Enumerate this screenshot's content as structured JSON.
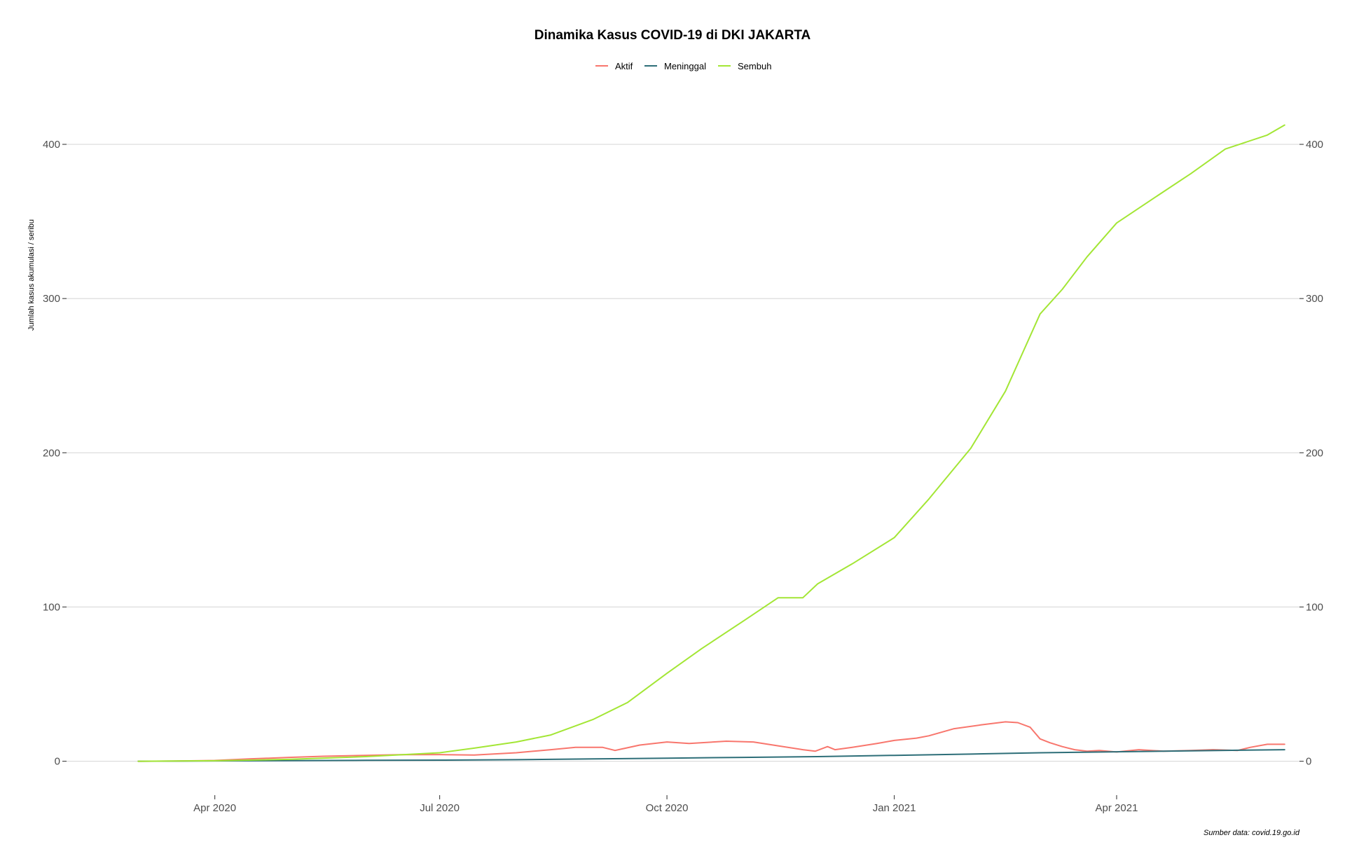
{
  "chart_data": {
    "type": "line",
    "title": "Dinamika Kasus COVID-19 di DKI JAKARTA",
    "ylabel": "Jumlah kasus akumulasi / seribu",
    "xlabel": "",
    "caption": "Sumber data: covid.19.go.id",
    "legend_position": "top",
    "grid": "horizontal major",
    "secondary_y_axis": true,
    "xlim": [
      "2020-02-01",
      "2021-06-14"
    ],
    "ylim": [
      -22,
      440
    ],
    "x_ticks": [
      {
        "date": "2020-04-01",
        "label": "Apr 2020"
      },
      {
        "date": "2020-07-01",
        "label": "Jul 2020"
      },
      {
        "date": "2020-10-01",
        "label": "Oct 2020"
      },
      {
        "date": "2021-01-01",
        "label": "Jan 2021"
      },
      {
        "date": "2021-04-01",
        "label": "Apr 2021"
      }
    ],
    "y_ticks": [
      {
        "value": 0,
        "label": "0"
      },
      {
        "value": 100,
        "label": "100"
      },
      {
        "value": 200,
        "label": "200"
      },
      {
        "value": 300,
        "label": "300"
      },
      {
        "value": 400,
        "label": "400"
      }
    ],
    "series": [
      {
        "name": "Aktif",
        "color": "#F8766D",
        "points": [
          [
            "2020-03-01",
            0
          ],
          [
            "2020-03-15",
            0.1
          ],
          [
            "2020-04-01",
            0.5
          ],
          [
            "2020-04-15",
            1.5
          ],
          [
            "2020-05-01",
            2.5
          ],
          [
            "2020-05-15",
            3.2
          ],
          [
            "2020-06-01",
            3.8
          ],
          [
            "2020-06-15",
            4.2
          ],
          [
            "2020-07-01",
            4.3
          ],
          [
            "2020-07-15",
            4.0
          ],
          [
            "2020-08-01",
            5.5
          ],
          [
            "2020-08-15",
            7.5
          ],
          [
            "2020-08-25",
            9.0
          ],
          [
            "2020-09-05",
            9.0
          ],
          [
            "2020-09-10",
            7.0
          ],
          [
            "2020-09-20",
            10.5
          ],
          [
            "2020-10-01",
            12.5
          ],
          [
            "2020-10-10",
            11.5
          ],
          [
            "2020-10-25",
            13.0
          ],
          [
            "2020-11-05",
            12.5
          ],
          [
            "2020-11-15",
            10.0
          ],
          [
            "2020-11-25",
            7.5
          ],
          [
            "2020-11-30",
            6.5
          ],
          [
            "2020-12-05",
            9.5
          ],
          [
            "2020-12-08",
            7.5
          ],
          [
            "2020-12-15",
            9.0
          ],
          [
            "2020-12-25",
            11.5
          ],
          [
            "2021-01-01",
            13.5
          ],
          [
            "2021-01-10",
            15.0
          ],
          [
            "2021-01-15",
            16.5
          ],
          [
            "2021-01-25",
            21.0
          ],
          [
            "2021-02-05",
            23.5
          ],
          [
            "2021-02-15",
            25.5
          ],
          [
            "2021-02-20",
            25.0
          ],
          [
            "2021-02-25",
            22.0
          ],
          [
            "2021-03-01",
            14.5
          ],
          [
            "2021-03-05",
            12.0
          ],
          [
            "2021-03-10",
            9.5
          ],
          [
            "2021-03-15",
            7.5
          ],
          [
            "2021-03-20",
            6.5
          ],
          [
            "2021-03-25",
            7.0
          ],
          [
            "2021-04-01",
            6.0
          ],
          [
            "2021-04-10",
            7.5
          ],
          [
            "2021-04-20",
            6.5
          ],
          [
            "2021-05-01",
            7.0
          ],
          [
            "2021-05-10",
            7.5
          ],
          [
            "2021-05-20",
            7.0
          ],
          [
            "2021-05-25",
            9.0
          ],
          [
            "2021-06-01",
            11.0
          ],
          [
            "2021-06-08",
            11.0
          ]
        ]
      },
      {
        "name": "Meninggal",
        "color": "#2D6E78",
        "points": [
          [
            "2020-03-01",
            0
          ],
          [
            "2020-04-01",
            0.2
          ],
          [
            "2020-05-01",
            0.4
          ],
          [
            "2020-06-01",
            0.6
          ],
          [
            "2020-07-01",
            0.7
          ],
          [
            "2020-08-01",
            1.0
          ],
          [
            "2020-09-01",
            1.5
          ],
          [
            "2020-10-01",
            2.0
          ],
          [
            "2020-11-01",
            2.5
          ],
          [
            "2020-12-01",
            3.0
          ],
          [
            "2021-01-01",
            3.8
          ],
          [
            "2021-02-01",
            4.6
          ],
          [
            "2021-03-01",
            5.5
          ],
          [
            "2021-04-01",
            6.1
          ],
          [
            "2021-05-01",
            6.7
          ],
          [
            "2021-06-08",
            7.5
          ]
        ]
      },
      {
        "name": "Sembuh",
        "color": "#A3E635",
        "points": [
          [
            "2020-03-01",
            0
          ],
          [
            "2020-04-01",
            0.3
          ],
          [
            "2020-05-01",
            1.2
          ],
          [
            "2020-06-01",
            3.0
          ],
          [
            "2020-07-01",
            5.5
          ],
          [
            "2020-07-15",
            8.5
          ],
          [
            "2020-08-01",
            12.5
          ],
          [
            "2020-08-15",
            17.0
          ],
          [
            "2020-09-01",
            27.0
          ],
          [
            "2020-09-15",
            38.0
          ],
          [
            "2020-10-01",
            57.0
          ],
          [
            "2020-10-15",
            73.0
          ],
          [
            "2020-11-01",
            91.0
          ],
          [
            "2020-11-15",
            106.0
          ],
          [
            "2020-11-25",
            106.0
          ],
          [
            "2020-12-01",
            115.0
          ],
          [
            "2020-12-15",
            128.0
          ],
          [
            "2021-01-01",
            145.0
          ],
          [
            "2021-01-15",
            170.0
          ],
          [
            "2021-02-01",
            203.0
          ],
          [
            "2021-02-15",
            240.0
          ],
          [
            "2021-03-01",
            290.0
          ],
          [
            "2021-03-10",
            306.0
          ],
          [
            "2021-03-20",
            327.0
          ],
          [
            "2021-04-01",
            349.0
          ],
          [
            "2021-04-15",
            364.0
          ],
          [
            "2021-05-01",
            381.0
          ],
          [
            "2021-05-15",
            397.0
          ],
          [
            "2021-06-01",
            406.0
          ],
          [
            "2021-06-08",
            412.5
          ]
        ]
      }
    ]
  }
}
